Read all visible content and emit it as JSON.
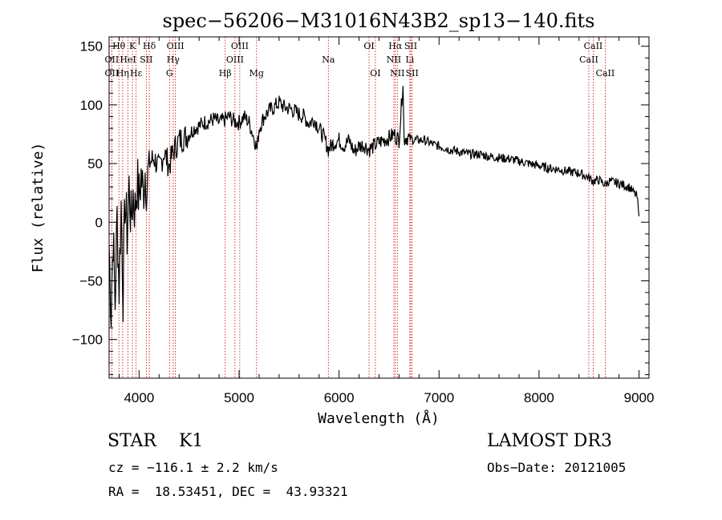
{
  "chart_data": {
    "type": "line",
    "title": "spec−56206−M31016N43B2_sp13−140.fits",
    "xlabel": "Wavelength (Å)",
    "ylabel": "Flux (relative)",
    "xlim": [
      3700,
      9100
    ],
    "ylim": [
      -133,
      158
    ],
    "xticks": [
      4000,
      5000,
      6000,
      7000,
      8000,
      9000
    ],
    "xtick_labels": [
      "4000",
      "5000",
      "6000",
      "7000",
      "8000",
      "9000"
    ],
    "yticks": [
      -100,
      -50,
      0,
      50,
      100,
      150
    ],
    "ytick_labels": [
      "−100",
      "−50",
      "0",
      "50",
      "100",
      "150"
    ],
    "line_color": "#000000",
    "marker_color": "#cc0000",
    "spectrum": {
      "x": [
        3700,
        3720,
        3740,
        3760,
        3780,
        3800,
        3820,
        3840,
        3860,
        3880,
        3900,
        3920,
        3940,
        3960,
        3980,
        4000,
        4020,
        4040,
        4060,
        4080,
        4100,
        4150,
        4200,
        4250,
        4300,
        4350,
        4400,
        4450,
        4500,
        4550,
        4600,
        4650,
        4700,
        4750,
        4800,
        4850,
        4900,
        4950,
        5000,
        5050,
        5100,
        5150,
        5180,
        5200,
        5250,
        5300,
        5350,
        5400,
        5450,
        5500,
        5550,
        5600,
        5650,
        5700,
        5750,
        5800,
        5850,
        5893,
        5950,
        6000,
        6050,
        6100,
        6150,
        6200,
        6250,
        6300,
        6350,
        6400,
        6450,
        6500,
        6550,
        6600,
        6640,
        6650,
        6660,
        6700,
        6750,
        6800,
        6850,
        6900,
        6950,
        7000,
        7100,
        7200,
        7300,
        7400,
        7500,
        7600,
        7700,
        7800,
        7900,
        8000,
        8100,
        8200,
        8300,
        8400,
        8498,
        8542,
        8600,
        8662,
        8700,
        8800,
        8900,
        8980,
        9000
      ],
      "y": [
        -20,
        -75,
        -10,
        -70,
        5,
        -55,
        15,
        -60,
        20,
        -10,
        30,
        0,
        25,
        10,
        35,
        20,
        40,
        25,
        45,
        30,
        50,
        55,
        45,
        60,
        48,
        62,
        70,
        72,
        75,
        80,
        82,
        85,
        86,
        88,
        85,
        87,
        90,
        86,
        85,
        90,
        85,
        72,
        62,
        80,
        90,
        95,
        98,
        102,
        98,
        97,
        95,
        92,
        90,
        84,
        88,
        80,
        72,
        62,
        68,
        70,
        65,
        70,
        60,
        65,
        66,
        62,
        65,
        68,
        70,
        72,
        75,
        70,
        120,
        70,
        72,
        72,
        70,
        70,
        70,
        68,
        66,
        65,
        62,
        60,
        58,
        58,
        56,
        55,
        54,
        52,
        50,
        48,
        46,
        45,
        43,
        42,
        38,
        35,
        36,
        32,
        35,
        33,
        30,
        22,
        5
      ]
    },
    "line_markers": [
      {
        "name": "Hθ",
        "wavelength": 3798,
        "row": 0
      },
      {
        "name": "OII",
        "wavelength": 3727,
        "row": 1
      },
      {
        "name": "OII",
        "wavelength": 3727,
        "row": 2
      },
      {
        "name": "K",
        "wavelength": 3934,
        "row": 0
      },
      {
        "name": "HeI",
        "wavelength": 3889,
        "row": 1
      },
      {
        "name": "Hη",
        "wavelength": 3835,
        "row": 2
      },
      {
        "name": "Hε",
        "wavelength": 3970,
        "row": 2
      },
      {
        "name": "Hδ",
        "wavelength": 4102,
        "row": 0
      },
      {
        "name": "SII",
        "wavelength": 4072,
        "row": 1
      },
      {
        "name": "OIII",
        "wavelength": 4363,
        "row": 0
      },
      {
        "name": "Hγ",
        "wavelength": 4341,
        "row": 1
      },
      {
        "name": "G",
        "wavelength": 4304,
        "row": 2
      },
      {
        "name": "OIII",
        "wavelength": 5007,
        "row": 0
      },
      {
        "name": "OIII",
        "wavelength": 4959,
        "row": 1
      },
      {
        "name": "Hβ",
        "wavelength": 4861,
        "row": 2
      },
      {
        "name": "Mg",
        "wavelength": 5175,
        "row": 2
      },
      {
        "name": "Na",
        "wavelength": 5893,
        "row": 1
      },
      {
        "name": "OI",
        "wavelength": 6300,
        "row": 0
      },
      {
        "name": "OI",
        "wavelength": 6363,
        "row": 2
      },
      {
        "name": "Hα",
        "wavelength": 6563,
        "row": 0
      },
      {
        "name": "NII",
        "wavelength": 6548,
        "row": 1
      },
      {
        "name": "NII",
        "wavelength": 6583,
        "row": 2
      },
      {
        "name": "SII",
        "wavelength": 6717,
        "row": 0
      },
      {
        "name": "Li",
        "wavelength": 6708,
        "row": 1
      },
      {
        "name": "SII",
        "wavelength": 6731,
        "row": 2
      },
      {
        "name": "CaII",
        "wavelength": 8542,
        "row": 0
      },
      {
        "name": "CaII",
        "wavelength": 8498,
        "row": 1
      },
      {
        "name": "CaII",
        "wavelength": 8662,
        "row": 2
      }
    ]
  },
  "info": {
    "object_class": "STAR    K1",
    "survey": "LAMOST DR3",
    "cz": "cz = −116.1 ± 2.2 km/s",
    "obs_date": "Obs−Date: 20121005",
    "radec": "RA =  18.53451, DEC =  43.93321"
  }
}
